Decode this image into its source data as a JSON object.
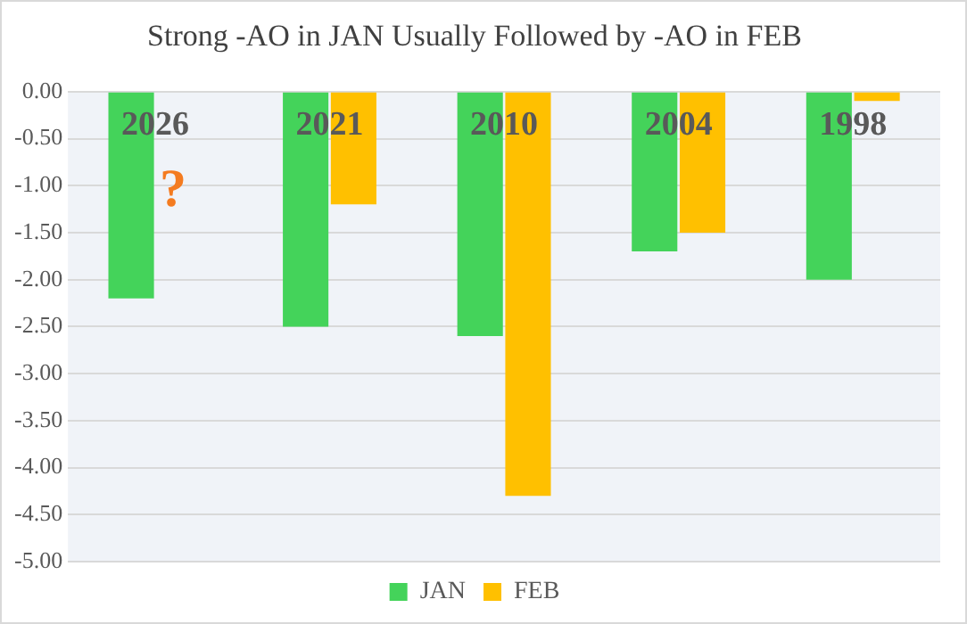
{
  "chart_data": {
    "type": "bar",
    "title": "Strong -AO in JAN Usually Followed by -AO in FEB",
    "categories": [
      "2026",
      "2021",
      "2010",
      "2004",
      "1998"
    ],
    "series": [
      {
        "name": "JAN",
        "color": "#44d35a",
        "values": [
          -2.2,
          -2.5,
          -2.6,
          -1.7,
          -2.0
        ]
      },
      {
        "name": "FEB",
        "color": "#ffc000",
        "values": [
          null,
          -1.2,
          -4.3,
          -1.5,
          -0.1
        ]
      }
    ],
    "ylim": [
      -5,
      0
    ],
    "yticks": [
      {
        "value": 0,
        "label": "0.00"
      },
      {
        "value": -0.5,
        "label": "-0.50"
      },
      {
        "value": -1,
        "label": "-1.00"
      },
      {
        "value": -1.5,
        "label": "-1.50"
      },
      {
        "value": -2,
        "label": "-2.00"
      },
      {
        "value": -2.5,
        "label": "-2.50"
      },
      {
        "value": -3,
        "label": "-3.00"
      },
      {
        "value": -3.5,
        "label": "-3.50"
      },
      {
        "value": -4,
        "label": "-4.00"
      },
      {
        "value": -4.5,
        "label": "-4.50"
      },
      {
        "value": -5,
        "label": "-5.00"
      }
    ],
    "annotations": [
      {
        "text": "?",
        "x": "2026",
        "y": -1.2
      }
    ],
    "grid": "y",
    "legend": "bottom"
  }
}
